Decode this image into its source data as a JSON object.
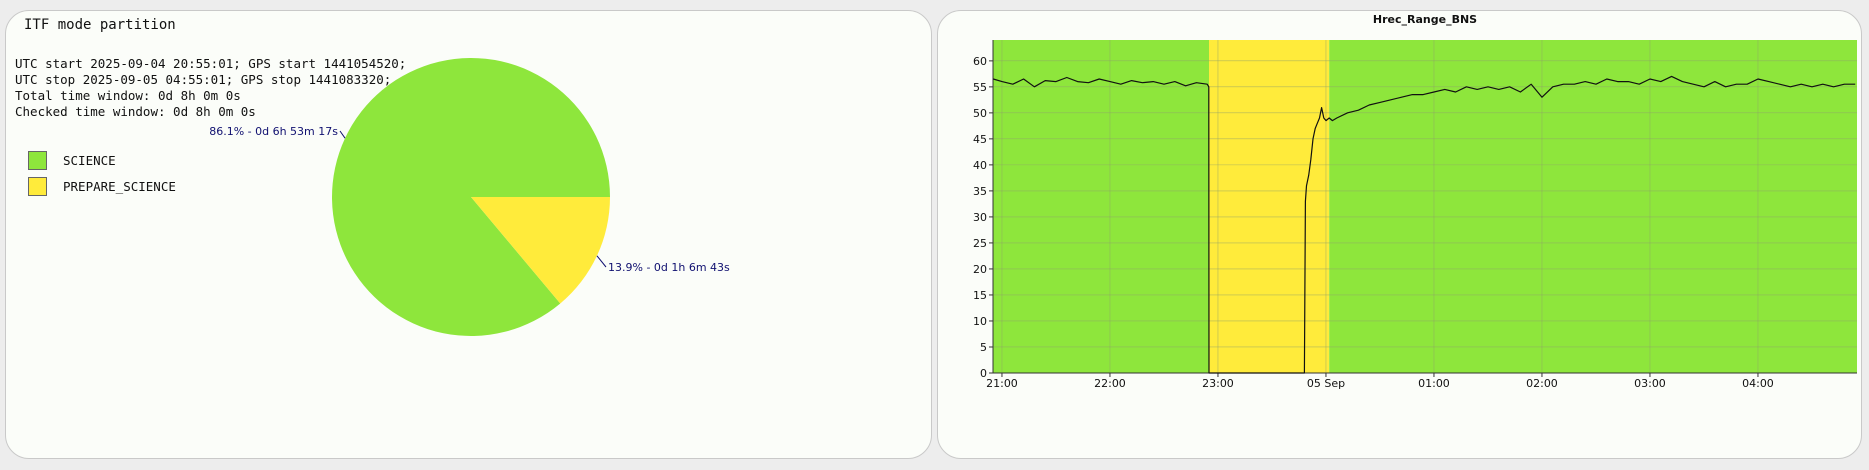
{
  "pie_panel": {
    "title": "ITF mode partition",
    "info_lines": [
      "UTC start 2025-09-04 20:55:01; GPS start 1441054520;",
      "UTC stop 2025-09-05 04:55:01; GPS stop 1441083320;",
      "Total time window: 0d 8h 0m 0s",
      "Checked time window: 0d 8h 0m 0s"
    ]
  },
  "chart_data": [
    {
      "type": "pie",
      "categories": [
        "SCIENCE",
        "PREPARE_SCIENCE"
      ],
      "values": [
        86.1,
        13.9
      ],
      "labels": [
        "86.1% - 0d 6h 53m 17s",
        "13.9% - 0d 1h 6m 43s"
      ],
      "colors": [
        "#8ee63c",
        "#ffeb3b"
      ],
      "legend": "left"
    },
    {
      "type": "line",
      "title": "Hrec_Range_BNS",
      "x_ticks": [
        "21:00",
        "22:00",
        "23:00",
        "05 Sep",
        "01:00",
        "02:00",
        "03:00",
        "04:00"
      ],
      "x_tick_hours": [
        21,
        22,
        23,
        24,
        25,
        26,
        27,
        28
      ],
      "xlim_hours": [
        20.917,
        28.917
      ],
      "ylim": [
        0,
        64
      ],
      "y_ticks": [
        0,
        5,
        10,
        15,
        20,
        25,
        30,
        35,
        40,
        45,
        50,
        55,
        60
      ],
      "grid": true,
      "mode_bands": [
        {
          "mode": "SCIENCE",
          "start": 20.917,
          "end": 22.917,
          "color": "#8ee63c"
        },
        {
          "mode": "PREPARE_SCIENCE",
          "start": 22.917,
          "end": 24.03,
          "color": "#ffeb3b"
        },
        {
          "mode": "SCIENCE",
          "start": 24.03,
          "end": 28.917,
          "color": "#8ee63c"
        }
      ],
      "series": [
        {
          "color": "#111111",
          "x": [
            20.92,
            21.0,
            21.1,
            21.2,
            21.3,
            21.4,
            21.5,
            21.6,
            21.7,
            21.8,
            21.9,
            22.0,
            22.1,
            22.2,
            22.3,
            22.4,
            22.5,
            22.6,
            22.7,
            22.8,
            22.9,
            22.915,
            22.917,
            23.8,
            23.81,
            23.82,
            23.84,
            23.86,
            23.88,
            23.9,
            23.92,
            23.94,
            23.96,
            23.98,
            24.0,
            24.03,
            24.06,
            24.1,
            24.2,
            24.3,
            24.4,
            24.5,
            24.6,
            24.7,
            24.8,
            24.9,
            25.0,
            25.1,
            25.2,
            25.3,
            25.4,
            25.5,
            25.6,
            25.7,
            25.8,
            25.9,
            26.0,
            26.1,
            26.2,
            26.3,
            26.4,
            26.5,
            26.6,
            26.7,
            26.8,
            26.9,
            27.0,
            27.1,
            27.2,
            27.3,
            27.4,
            27.5,
            27.6,
            27.7,
            27.8,
            27.9,
            28.0,
            28.1,
            28.2,
            28.3,
            28.4,
            28.5,
            28.6,
            28.7,
            28.8,
            28.9
          ],
          "y": [
            56.5,
            56.0,
            55.5,
            56.5,
            55.0,
            56.2,
            56.0,
            56.8,
            56.0,
            55.8,
            56.5,
            56.0,
            55.5,
            56.2,
            55.8,
            56.0,
            55.5,
            56.0,
            55.2,
            55.8,
            55.5,
            55.0,
            0,
            0,
            33,
            36,
            38,
            41,
            45,
            47,
            48,
            49,
            51,
            49,
            48.5,
            49,
            48.5,
            49,
            50,
            50.5,
            51.5,
            52,
            52.5,
            53,
            53.5,
            53.5,
            54,
            54.5,
            54,
            55,
            54.5,
            55,
            54.5,
            55,
            54,
            55.5,
            53,
            55,
            55.5,
            55.5,
            56,
            55.5,
            56.5,
            56,
            56,
            55.5,
            56.5,
            56,
            57,
            56,
            55.5,
            55,
            56,
            55,
            55.5,
            55.5,
            56.5,
            56,
            55.5,
            55,
            55.5,
            55,
            55.5,
            55,
            55.5,
            55.5
          ]
        }
      ]
    }
  ]
}
